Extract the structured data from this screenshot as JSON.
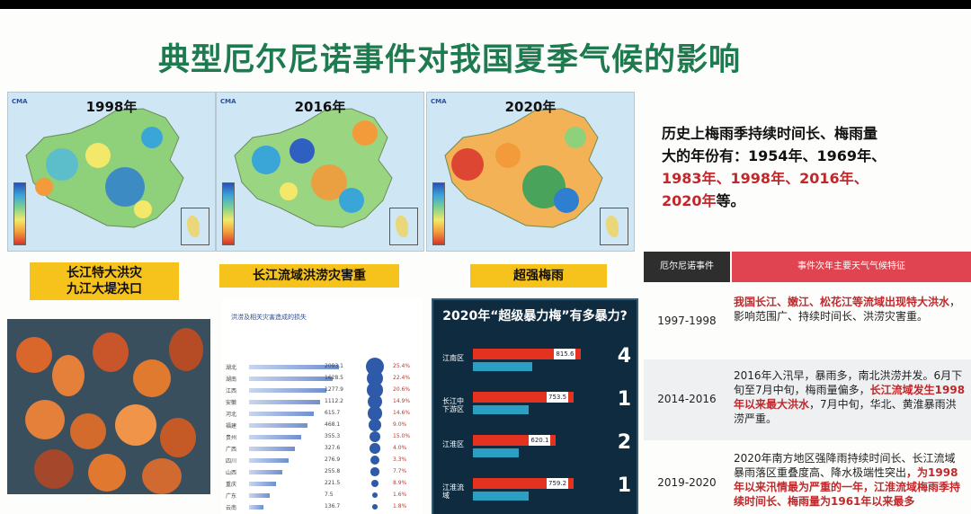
{
  "slide": {
    "title": "典型厄尔尼诺事件对我国夏季气候的影响"
  },
  "maps": [
    {
      "year": "1998年",
      "caption": [
        "长江特大洪灾",
        "九江大堤决口"
      ]
    },
    {
      "year": "2016年",
      "caption": [
        "长江流域洪涝灾害重"
      ]
    },
    {
      "year": "2020年",
      "caption": [
        "超强梅雨"
      ]
    }
  ],
  "disaster_sheet": {
    "title": "洪涝及相关灾害造成的损失",
    "rows": [
      {
        "prov": "湖北",
        "val": "2093.1",
        "pct": "25.4%"
      },
      {
        "prov": "湖南",
        "val": "1628.5",
        "pct": "22.4%"
      },
      {
        "prov": "江西",
        "val": "1277.9",
        "pct": "20.6%"
      },
      {
        "prov": "安徽",
        "val": "1112.2",
        "pct": "14.9%"
      },
      {
        "prov": "河北",
        "val": "615.7",
        "pct": "14.6%"
      },
      {
        "prov": "福建",
        "val": "468.1",
        "pct": "9.0%"
      },
      {
        "prov": "贵州",
        "val": "355.3",
        "pct": "15.0%"
      },
      {
        "prov": "广西",
        "val": "327.6",
        "pct": "4.0%"
      },
      {
        "prov": "四川",
        "val": "276.9",
        "pct": "3.3%"
      },
      {
        "prov": "山西",
        "val": "255.8",
        "pct": "7.7%"
      },
      {
        "prov": "重庆",
        "val": "221.5",
        "pct": "8.9%"
      },
      {
        "prov": "广东",
        "val": "7.5",
        "pct": "1.6%"
      },
      {
        "prov": "云南",
        "val": "136.7",
        "pct": "1.8%"
      }
    ]
  },
  "meiyu_2020": {
    "title": "2020年“超级暴力梅”有多暴力?",
    "rows": [
      {
        "name": "江南区",
        "value": "815.6",
        "fraction": 0.86,
        "multiplier": "4"
      },
      {
        "name": "长江中下游区",
        "value": "753.5",
        "fraction": 0.8,
        "multiplier": "1"
      },
      {
        "name": "江淮区",
        "value": "620.1",
        "fraction": 0.66,
        "multiplier": "2"
      },
      {
        "name": "江淮流域",
        "value": "759.2",
        "fraction": 0.8,
        "multiplier": "1"
      }
    ]
  },
  "history": {
    "line1": "历史上梅雨季持续时间长、梅雨量",
    "line2": "大的年份有：1954年、1969年、",
    "red1": "1983年、1998年、2016年、",
    "red2": "2020年",
    "tail": "等。"
  },
  "table": {
    "header": [
      "厄尔尼诺事件",
      "事件次年主要天气气候特征"
    ],
    "rows": [
      {
        "year": "1997-1998",
        "parts": [
          {
            "t": "我国长江、嫩江、松花江等流域出现特大洪水",
            "red": true
          },
          {
            "t": "，影响范围广、持续时间长、洪涝灾害重。",
            "red": false
          }
        ]
      },
      {
        "year": "2014-2016",
        "parts": [
          {
            "t": "2016年入汛早，暴雨多，南北洪涝并发。6月下旬至7月中旬，梅雨量偏多，",
            "red": false
          },
          {
            "t": "长江流域发生1998年以来最大洪水",
            "red": true
          },
          {
            "t": "，7月中旬，华北、黄淮暴雨洪涝严重。",
            "red": false
          }
        ]
      },
      {
        "year": "2019-2020",
        "parts": [
          {
            "t": "2020年南方地区强降雨持续时间长、长江流域暴雨落区重叠度高、降水极端性突出",
            "red": false
          },
          {
            "t": "，为1998年以来汛情最为严重的一年，江淮流域梅雨季持续时间长、梅雨量为1961年以来最多",
            "red": true
          }
        ]
      }
    ]
  },
  "colors": {
    "title_green": "#1e7a4f",
    "highlight_red": "#c0282b",
    "label_yellow": "#f6c21c",
    "header_red": "#e04450"
  }
}
